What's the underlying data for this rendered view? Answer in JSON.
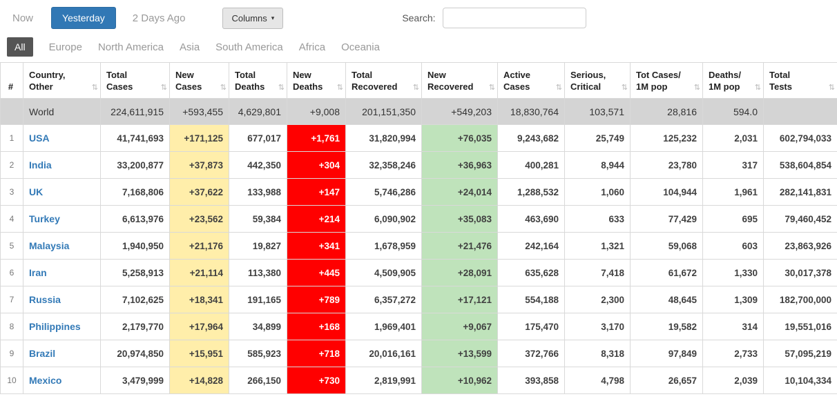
{
  "toolbar": {
    "now_label": "Now",
    "yesterday_label": "Yesterday",
    "two_days_ago_label": "2 Days Ago",
    "columns_label": "Columns",
    "search_label": "Search:",
    "search_value": ""
  },
  "tabs": [
    {
      "label": "All",
      "active": true
    },
    {
      "label": "Europe",
      "active": false
    },
    {
      "label": "North America",
      "active": false
    },
    {
      "label": "Asia",
      "active": false
    },
    {
      "label": "South America",
      "active": false
    },
    {
      "label": "Africa",
      "active": false
    },
    {
      "label": "Oceania",
      "active": false
    }
  ],
  "colors": {
    "accent_blue": "#3178b5",
    "active_tab": "#555555",
    "new_cases_bg": "#ffeeaa",
    "new_deaths_bg": "#ff0000",
    "new_recovered_bg": "#bfe3bb",
    "world_row_bg": "#d4d4d4",
    "link_blue": "#337ab7"
  },
  "table": {
    "sort_icon": "⇅",
    "headers": [
      {
        "line1": "#",
        "line2": "",
        "sort": false
      },
      {
        "line1": "Country,",
        "line2": "Other",
        "sort": true
      },
      {
        "line1": "Total",
        "line2": "Cases",
        "sort": true
      },
      {
        "line1": "New",
        "line2": "Cases",
        "sort": true
      },
      {
        "line1": "Total",
        "line2": "Deaths",
        "sort": true
      },
      {
        "line1": "New",
        "line2": "Deaths",
        "sort": true
      },
      {
        "line1": "Total",
        "line2": "Recovered",
        "sort": true
      },
      {
        "line1": "New",
        "line2": "Recovered",
        "sort": true
      },
      {
        "line1": "Active",
        "line2": "Cases",
        "sort": true
      },
      {
        "line1": "Serious,",
        "line2": "Critical",
        "sort": true
      },
      {
        "line1": "Tot Cases/",
        "line2": "1M pop",
        "sort": true
      },
      {
        "line1": "Deaths/",
        "line2": "1M pop",
        "sort": true
      },
      {
        "line1": "Total",
        "line2": "Tests",
        "sort": true
      }
    ],
    "world_row": {
      "rank": "",
      "country": "World",
      "total_cases": "224,611,915",
      "new_cases": "+593,455",
      "total_deaths": "4,629,801",
      "new_deaths": "+9,008",
      "total_recovered": "201,151,350",
      "new_recovered": "+549,203",
      "active_cases": "18,830,764",
      "serious_critical": "103,571",
      "tot_cases_1m": "28,816",
      "deaths_1m": "594.0",
      "total_tests": ""
    },
    "rows": [
      {
        "rank": "1",
        "country": "USA",
        "total_cases": "41,741,693",
        "new_cases": "+171,125",
        "total_deaths": "677,017",
        "new_deaths": "+1,761",
        "total_recovered": "31,820,994",
        "new_recovered": "+76,035",
        "active_cases": "9,243,682",
        "serious_critical": "25,749",
        "tot_cases_1m": "125,232",
        "deaths_1m": "2,031",
        "total_tests": "602,794,033"
      },
      {
        "rank": "2",
        "country": "India",
        "total_cases": "33,200,877",
        "new_cases": "+37,873",
        "total_deaths": "442,350",
        "new_deaths": "+304",
        "total_recovered": "32,358,246",
        "new_recovered": "+36,963",
        "active_cases": "400,281",
        "serious_critical": "8,944",
        "tot_cases_1m": "23,780",
        "deaths_1m": "317",
        "total_tests": "538,604,854"
      },
      {
        "rank": "3",
        "country": "UK",
        "total_cases": "7,168,806",
        "new_cases": "+37,622",
        "total_deaths": "133,988",
        "new_deaths": "+147",
        "total_recovered": "5,746,286",
        "new_recovered": "+24,014",
        "active_cases": "1,288,532",
        "serious_critical": "1,060",
        "tot_cases_1m": "104,944",
        "deaths_1m": "1,961",
        "total_tests": "282,141,831"
      },
      {
        "rank": "4",
        "country": "Turkey",
        "total_cases": "6,613,976",
        "new_cases": "+23,562",
        "total_deaths": "59,384",
        "new_deaths": "+214",
        "total_recovered": "6,090,902",
        "new_recovered": "+35,083",
        "active_cases": "463,690",
        "serious_critical": "633",
        "tot_cases_1m": "77,429",
        "deaths_1m": "695",
        "total_tests": "79,460,452"
      },
      {
        "rank": "5",
        "country": "Malaysia",
        "total_cases": "1,940,950",
        "new_cases": "+21,176",
        "total_deaths": "19,827",
        "new_deaths": "+341",
        "total_recovered": "1,678,959",
        "new_recovered": "+21,476",
        "active_cases": "242,164",
        "serious_critical": "1,321",
        "tot_cases_1m": "59,068",
        "deaths_1m": "603",
        "total_tests": "23,863,926"
      },
      {
        "rank": "6",
        "country": "Iran",
        "total_cases": "5,258,913",
        "new_cases": "+21,114",
        "total_deaths": "113,380",
        "new_deaths": "+445",
        "total_recovered": "4,509,905",
        "new_recovered": "+28,091",
        "active_cases": "635,628",
        "serious_critical": "7,418",
        "tot_cases_1m": "61,672",
        "deaths_1m": "1,330",
        "total_tests": "30,017,378"
      },
      {
        "rank": "7",
        "country": "Russia",
        "total_cases": "7,102,625",
        "new_cases": "+18,341",
        "total_deaths": "191,165",
        "new_deaths": "+789",
        "total_recovered": "6,357,272",
        "new_recovered": "+17,121",
        "active_cases": "554,188",
        "serious_critical": "2,300",
        "tot_cases_1m": "48,645",
        "deaths_1m": "1,309",
        "total_tests": "182,700,000"
      },
      {
        "rank": "8",
        "country": "Philippines",
        "total_cases": "2,179,770",
        "new_cases": "+17,964",
        "total_deaths": "34,899",
        "new_deaths": "+168",
        "total_recovered": "1,969,401",
        "new_recovered": "+9,067",
        "active_cases": "175,470",
        "serious_critical": "3,170",
        "tot_cases_1m": "19,582",
        "deaths_1m": "314",
        "total_tests": "19,551,016"
      },
      {
        "rank": "9",
        "country": "Brazil",
        "total_cases": "20,974,850",
        "new_cases": "+15,951",
        "total_deaths": "585,923",
        "new_deaths": "+718",
        "total_recovered": "20,016,161",
        "new_recovered": "+13,599",
        "active_cases": "372,766",
        "serious_critical": "8,318",
        "tot_cases_1m": "97,849",
        "deaths_1m": "2,733",
        "total_tests": "57,095,219"
      },
      {
        "rank": "10",
        "country": "Mexico",
        "total_cases": "3,479,999",
        "new_cases": "+14,828",
        "total_deaths": "266,150",
        "new_deaths": "+730",
        "total_recovered": "2,819,991",
        "new_recovered": "+10,962",
        "active_cases": "393,858",
        "serious_critical": "4,798",
        "tot_cases_1m": "26,657",
        "deaths_1m": "2,039",
        "total_tests": "10,104,334"
      }
    ]
  }
}
